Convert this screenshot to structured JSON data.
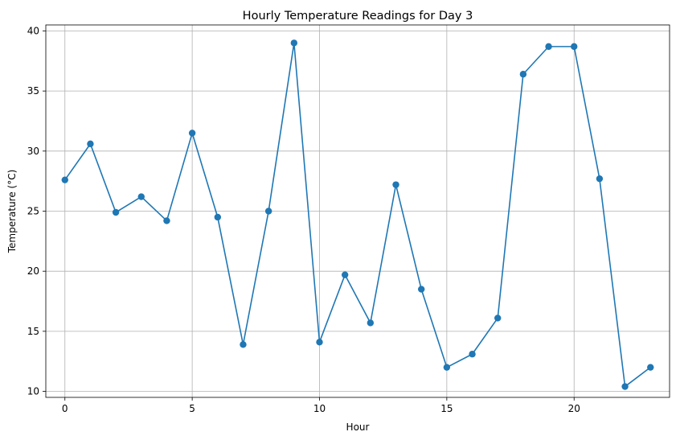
{
  "chart_data": {
    "type": "line",
    "title": "Hourly Temperature Readings for Day 3",
    "xlabel": "Hour",
    "ylabel": "Temperature (°C)",
    "xlim": [
      -0.75,
      23.75
    ],
    "ylim": [
      9.5,
      40.5
    ],
    "xticks": [
      0,
      5,
      10,
      15,
      20
    ],
    "yticks": [
      10,
      15,
      20,
      25,
      30,
      35,
      40
    ],
    "grid": true,
    "marker": "circle",
    "color": "#1f77b4",
    "series": [
      {
        "x": [
          0,
          1,
          2,
          3,
          4,
          5,
          6,
          7,
          8,
          9,
          10,
          11,
          12,
          13,
          14,
          15,
          16,
          17,
          18,
          19,
          20,
          21,
          22,
          23
        ],
        "values": [
          27.6,
          30.6,
          24.9,
          26.2,
          24.2,
          31.5,
          24.5,
          13.9,
          25.0,
          39.0,
          14.1,
          19.7,
          15.7,
          27.2,
          18.5,
          12.0,
          13.1,
          16.1,
          36.4,
          38.7,
          38.7,
          27.7,
          10.4,
          12.0
        ]
      }
    ]
  }
}
